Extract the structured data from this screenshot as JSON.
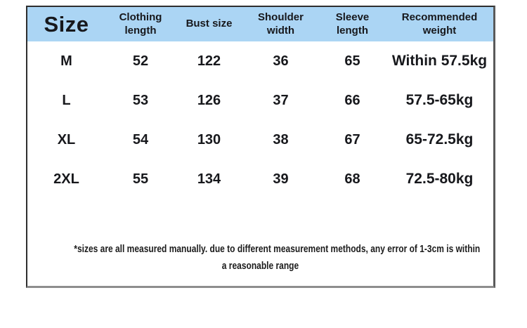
{
  "chart_data": {
    "type": "table",
    "title": "Size",
    "columns": [
      "Size",
      "Clothing length",
      "Bust size",
      "Shoulder width",
      "Sleeve length",
      "Recommended weight"
    ],
    "rows": [
      [
        "M",
        "52",
        "122",
        "36",
        "65",
        "Within 57.5kg"
      ],
      [
        "L",
        "53",
        "126",
        "37",
        "66",
        "57.5-65kg"
      ],
      [
        "XL",
        "54",
        "130",
        "38",
        "67",
        "65-72.5kg"
      ],
      [
        "2XL",
        "55",
        "134",
        "39",
        "68",
        "72.5-80kg"
      ]
    ],
    "footnote": "*sizes are all measured manually. due to different measurement methods, any error of 1-3cm is within a reasonable range"
  },
  "footnote": {
    "line1": "*sizes are all measured manually. due to different measurement methods, any error of 1-3cm is within",
    "line2": "a reasonable range"
  },
  "colors": {
    "header_bg": "#abd5f4",
    "text_dark": "#17181c",
    "border_dark": "#2e2e2e",
    "border_side": "#5a5a5a",
    "border_shadow": "#8d8d8d",
    "page_bg": "#ffffff"
  }
}
